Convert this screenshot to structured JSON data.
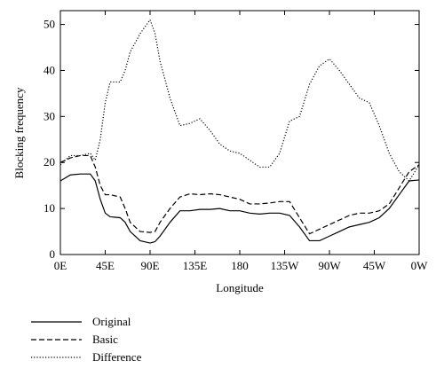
{
  "chart_data": {
    "type": "line",
    "xlabel": "Longitude",
    "ylabel": "Blocking frequency",
    "x": [
      0,
      10,
      20,
      30,
      35,
      40,
      45,
      50,
      60,
      65,
      70,
      80,
      90,
      95,
      100,
      110,
      120,
      130,
      140,
      150,
      160,
      170,
      180,
      190,
      200,
      210,
      220,
      230,
      240,
      250,
      260,
      270,
      280,
      290,
      300,
      310,
      320,
      330,
      340,
      350,
      360
    ],
    "series": [
      {
        "name": "Original",
        "color": "#000000",
        "dash": "solid",
        "values": [
          16,
          17.3,
          17.5,
          17.5,
          16,
          12,
          9,
          8.2,
          8,
          7,
          5,
          3,
          2.5,
          2.8,
          4,
          7,
          9.5,
          9.5,
          9.8,
          9.8,
          10,
          9.5,
          9.5,
          9,
          8.8,
          9,
          9,
          8.5,
          6,
          3,
          3,
          4,
          5,
          6,
          6.5,
          7,
          8,
          10,
          13,
          16,
          16.2
        ]
      },
      {
        "name": "Basic",
        "color": "#000000",
        "dash": "dashed",
        "values": [
          20,
          21,
          21.5,
          21.5,
          19,
          15,
          13,
          13,
          12.5,
          10,
          7,
          5,
          4.8,
          5,
          7,
          10,
          12.5,
          13.2,
          13,
          13.2,
          13,
          12.5,
          12,
          11,
          11,
          11.2,
          11.5,
          11.5,
          8,
          4.5,
          5.5,
          6.5,
          7.5,
          8.5,
          9,
          9,
          9.5,
          11,
          14.5,
          18,
          19.5
        ]
      },
      {
        "name": "Difference",
        "color": "#000000",
        "dash": "dotted",
        "values": [
          19.5,
          21.5,
          21.5,
          22,
          20.5,
          25,
          33,
          37.5,
          37.5,
          40,
          44,
          48,
          51,
          48,
          42,
          34,
          28,
          28.5,
          29.5,
          27,
          24,
          22.5,
          22,
          20.5,
          19,
          19,
          22,
          29,
          30,
          37,
          41,
          42.5,
          40,
          37,
          34,
          33,
          28,
          22,
          18,
          16,
          19.5
        ]
      }
    ],
    "xlim": [
      0,
      360
    ],
    "xticks": [
      {
        "value": 0,
        "label": "0E"
      },
      {
        "value": 45,
        "label": "45E"
      },
      {
        "value": 90,
        "label": "90E"
      },
      {
        "value": 135,
        "label": "135E"
      },
      180,
      {
        "value": 225,
        "label": "135W"
      },
      {
        "value": 270,
        "label": "90W"
      },
      {
        "value": 315,
        "label": "45W"
      },
      {
        "value": 360,
        "label": "0W"
      }
    ],
    "ylim": [
      0,
      53
    ],
    "yticks": [
      0,
      10,
      20,
      30,
      40,
      50
    ],
    "legend": "bottom-left",
    "grid": false
  }
}
